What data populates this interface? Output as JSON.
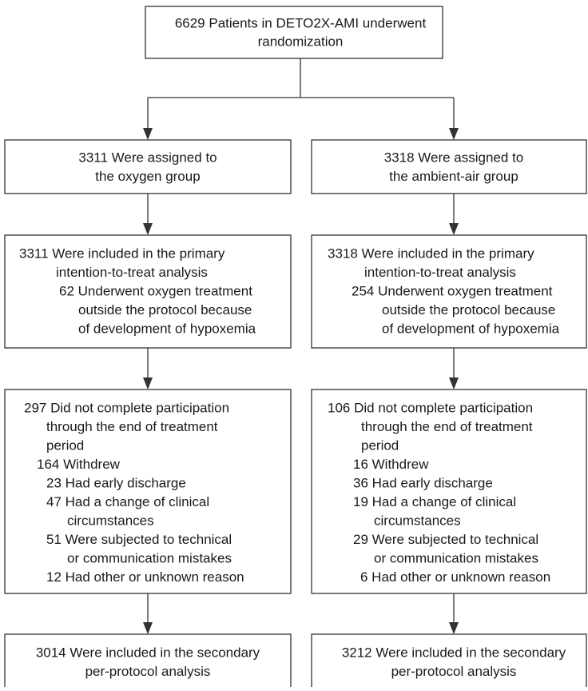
{
  "top": {
    "lines": [
      "6629 Patients in DETO2X-AMI underwent",
      "randomization"
    ]
  },
  "arms": [
    {
      "assigned": {
        "lines": [
          "3311 Were assigned to",
          "the oxygen group"
        ]
      },
      "analysis": {
        "lines": [
          "3311 Were included in the primary",
          "intention-to-treat analysis",
          "62 Underwent oxygen treatment",
          "outside the protocol because",
          "of development of hypoxemia"
        ]
      },
      "discontinued": {
        "lines": [
          "297 Did not complete participation",
          "through the end of treatment",
          "period",
          "164 Withdrew",
          "23 Had early discharge",
          "47 Had a change of clinical",
          "circumstances",
          "51 Were subjected to technical",
          "or communication mistakes",
          "12 Had other or unknown reason"
        ]
      },
      "secondary": {
        "lines": [
          "3014 Were included in the secondary",
          "per-protocol analysis"
        ]
      }
    },
    {
      "assigned": {
        "lines": [
          "3318 Were assigned to",
          "the ambient-air group"
        ]
      },
      "analysis": {
        "lines": [
          "3318 Were included in the primary",
          "intention-to-treat analysis",
          "254 Underwent oxygen treatment",
          "outside the protocol because",
          "of development of hypoxemia"
        ]
      },
      "discontinued": {
        "lines": [
          "106 Did not complete participation",
          "through the end of treatment",
          "period",
          "16 Withdrew",
          "36 Had early discharge",
          "19 Had a change of clinical",
          "circumstances",
          "29 Were subjected to technical",
          "or communication mistakes",
          "6 Had other or unknown reason"
        ]
      },
      "secondary": {
        "lines": [
          "3212 Were included in the secondary",
          "per-protocol analysis"
        ]
      }
    }
  ]
}
